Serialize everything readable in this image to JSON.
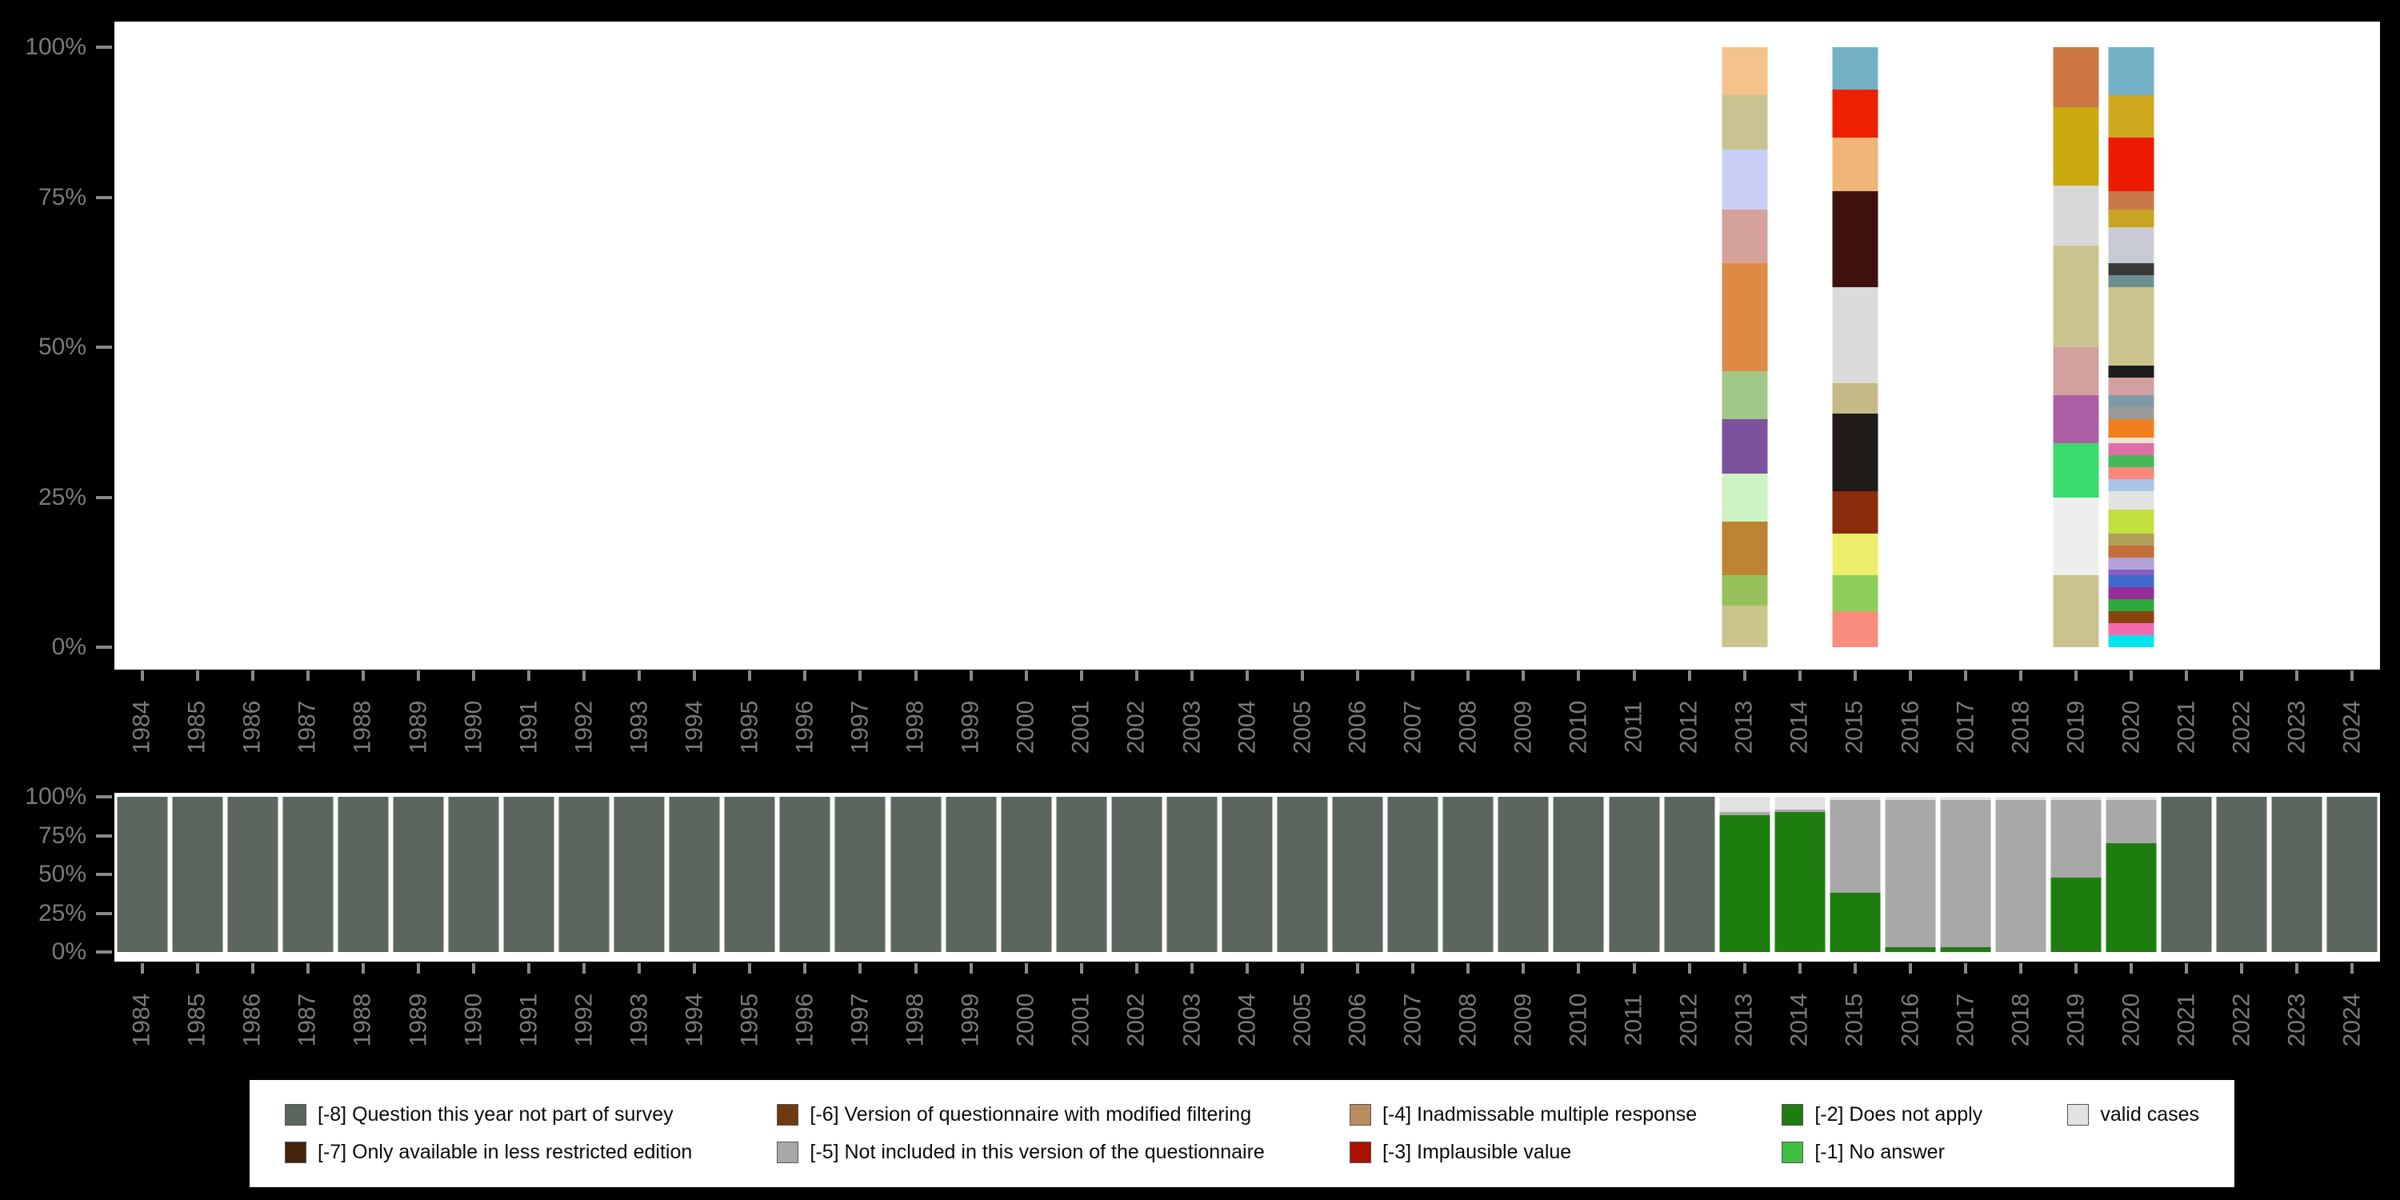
{
  "colors": {
    "background": "#000000",
    "panel": "#ffffff",
    "axis_text": "#7b7b7b",
    "tick": "#8a8a8a",
    "legend_text": "#0a0a0a"
  },
  "axes": {
    "y_ticks": [
      "100%",
      "75%",
      "50%",
      "25%",
      "0%"
    ],
    "years": [
      "1984",
      "1985",
      "1986",
      "1987",
      "1988",
      "1989",
      "1990",
      "1991",
      "1992",
      "1993",
      "1994",
      "1995",
      "1996",
      "1997",
      "1998",
      "1999",
      "2000",
      "2001",
      "2002",
      "2003",
      "2004",
      "2005",
      "2006",
      "2007",
      "2008",
      "2009",
      "2010",
      "2011",
      "2012",
      "2013",
      "2014",
      "2015",
      "2016",
      "2017",
      "2018",
      "2019",
      "2020",
      "2021",
      "2022",
      "2023",
      "2024"
    ]
  },
  "legend": {
    "items": [
      {
        "key": "m8",
        "label": "[-8] Question this year not part of survey",
        "color": "#5A665E"
      },
      {
        "key": "m7",
        "label": "[-7] Only available in less restricted edition",
        "color": "#45240B"
      },
      {
        "key": "m6",
        "label": "[-6] Version of questionnaire with modified filtering",
        "color": "#6E3B10"
      },
      {
        "key": "m5",
        "label": "[-5] Not included in this version of the questionnaire",
        "color": "#A8A8A8"
      },
      {
        "key": "m4",
        "label": "[-4] Inadmissable multiple response",
        "color": "#B98D60"
      },
      {
        "key": "m3",
        "label": "[-3] Implausible value",
        "color": "#A91101"
      },
      {
        "key": "m2",
        "label": "[-2] Does not apply",
        "color": "#1E7D0F"
      },
      {
        "key": "m1",
        "label": "[-1] No answer",
        "color": "#3FBE3F"
      },
      {
        "key": "valid",
        "label": "valid cases",
        "color": "#E2E2E2"
      }
    ]
  },
  "chart_data": [
    {
      "type": "bar",
      "stacking": "percent",
      "description": "Stacked distribution of answer categories (valid cases only); bars are present only for 2013, 2015, 2019 and 2020, all other years empty",
      "ylim": [
        0,
        100
      ],
      "ytick_labels": [
        "100%",
        "75%",
        "50%",
        "25%",
        "0%"
      ],
      "years_with_bars": [
        "2013",
        "2015",
        "2019",
        "2020"
      ],
      "bars": {
        "2013": [
          {
            "color": "#F4C28B",
            "pct": 8
          },
          {
            "color": "#C9C291",
            "pct": 9
          },
          {
            "color": "#C9CEF6",
            "pct": 10
          },
          {
            "color": "#D5A19B",
            "pct": 9
          },
          {
            "color": "#DD8B44",
            "pct": 18
          },
          {
            "color": "#A2C889",
            "pct": 8
          },
          {
            "color": "#7C519D",
            "pct": 9
          },
          {
            "color": "#CDF2C4",
            "pct": 8
          },
          {
            "color": "#BD8332",
            "pct": 9
          },
          {
            "color": "#97C25B",
            "pct": 5
          },
          {
            "color": "#CBC48D",
            "pct": 7
          }
        ],
        "2015": [
          {
            "color": "#73B1C7",
            "pct": 7
          },
          {
            "color": "#ED2100",
            "pct": 8
          },
          {
            "color": "#F1B577",
            "pct": 9
          },
          {
            "color": "#3F1210",
            "pct": 16
          },
          {
            "color": "#DBDBDB",
            "pct": 16
          },
          {
            "color": "#C5BA87",
            "pct": 5
          },
          {
            "color": "#201A19",
            "pct": 13
          },
          {
            "color": "#8B2C0B",
            "pct": 7
          },
          {
            "color": "#ECEF69",
            "pct": 7
          },
          {
            "color": "#8ECF59",
            "pct": 6
          },
          {
            "color": "#F88D7D",
            "pct": 6
          }
        ],
        "2019": [
          {
            "color": "#CB7643",
            "pct": 10
          },
          {
            "color": "#CBA910",
            "pct": 13
          },
          {
            "color": "#D8D8D8",
            "pct": 10
          },
          {
            "color": "#CBC38E",
            "pct": 17
          },
          {
            "color": "#D3A0A0",
            "pct": 8
          },
          {
            "color": "#AA5EA3",
            "pct": 8
          },
          {
            "color": "#39DC6D",
            "pct": 9
          },
          {
            "color": "#EEEEEE",
            "pct": 13
          },
          {
            "color": "#CBC38E",
            "pct": 12
          }
        ],
        "2020": [
          {
            "color": "#73B1C7",
            "pct": 8
          },
          {
            "color": "#CEA81F",
            "pct": 7
          },
          {
            "color": "#ED1900",
            "pct": 9
          },
          {
            "color": "#C87848",
            "pct": 3
          },
          {
            "color": "#C7A421",
            "pct": 3
          },
          {
            "color": "#C8CBD3",
            "pct": 6
          },
          {
            "color": "#393939",
            "pct": 2
          },
          {
            "color": "#6D8E8F",
            "pct": 2
          },
          {
            "color": "#CBC38E",
            "pct": 13
          },
          {
            "color": "#1D1D1D",
            "pct": 2
          },
          {
            "color": "#D3A0A0",
            "pct": 3
          },
          {
            "color": "#7C9AA5",
            "pct": 2
          },
          {
            "color": "#9A9A9A",
            "pct": 2
          },
          {
            "color": "#EF7F1F",
            "pct": 3
          },
          {
            "color": "#ECE2D7",
            "pct": 1
          },
          {
            "color": "#DF6EA7",
            "pct": 2
          },
          {
            "color": "#45B759",
            "pct": 2
          },
          {
            "color": "#F8887A",
            "pct": 2
          },
          {
            "color": "#A8C5E7",
            "pct": 2
          },
          {
            "color": "#E2E2E2",
            "pct": 3
          },
          {
            "color": "#C2E03E",
            "pct": 4
          },
          {
            "color": "#AE9F59",
            "pct": 2
          },
          {
            "color": "#C36F39",
            "pct": 2
          },
          {
            "color": "#B2A2D9",
            "pct": 2
          },
          {
            "color": "#895EBE",
            "pct": 1
          },
          {
            "color": "#4168CF",
            "pct": 2
          },
          {
            "color": "#982F98",
            "pct": 2
          },
          {
            "color": "#2EA73B",
            "pct": 2
          },
          {
            "color": "#894412",
            "pct": 2
          },
          {
            "color": "#F46AAF",
            "pct": 2
          },
          {
            "color": "#00E4ED",
            "pct": 2
          }
        ]
      }
    },
    {
      "type": "bar",
      "stacking": "percent",
      "description": "Share of missing-value codes vs valid cases per survey year 1984-2024",
      "ylim": [
        0,
        100
      ],
      "ytick_labels": [
        "100%",
        "75%",
        "50%",
        "25%",
        "0%"
      ],
      "stack_order_top_to_bottom": [
        "valid",
        "m5",
        "m2",
        "m8"
      ],
      "series": [
        {
          "key": "m8",
          "name": "[-8] Question this year not part of survey",
          "color": "#5A665E",
          "values": [
            100,
            100,
            100,
            100,
            100,
            100,
            100,
            100,
            100,
            100,
            100,
            100,
            100,
            100,
            100,
            100,
            100,
            100,
            100,
            100,
            100,
            100,
            100,
            100,
            100,
            100,
            100,
            100,
            100,
            0,
            0,
            0,
            0,
            0,
            0,
            0,
            0,
            100,
            100,
            100,
            100
          ]
        },
        {
          "key": "m5",
          "name": "[-5] Not included in this version of the questionnaire",
          "color": "#A8A8A8",
          "values": [
            0,
            0,
            0,
            0,
            0,
            0,
            0,
            0,
            0,
            0,
            0,
            0,
            0,
            0,
            0,
            0,
            0,
            0,
            0,
            0,
            0,
            0,
            0,
            0,
            0,
            0,
            0,
            0,
            0,
            2,
            2,
            60,
            95,
            95,
            98,
            50,
            28,
            0,
            0,
            0,
            0
          ]
        },
        {
          "key": "m2",
          "name": "[-2] Does not apply",
          "color": "#1E7D0F",
          "values": [
            0,
            0,
            0,
            0,
            0,
            0,
            0,
            0,
            0,
            0,
            0,
            0,
            0,
            0,
            0,
            0,
            0,
            0,
            0,
            0,
            0,
            0,
            0,
            0,
            0,
            0,
            0,
            0,
            0,
            88,
            90,
            38,
            3,
            3,
            0,
            48,
            70,
            0,
            0,
            0,
            0
          ]
        },
        {
          "key": "valid",
          "name": "valid cases",
          "color": "#E2E2E2",
          "values": [
            0,
            0,
            0,
            0,
            0,
            0,
            0,
            0,
            0,
            0,
            0,
            0,
            0,
            0,
            0,
            0,
            0,
            0,
            0,
            0,
            0,
            0,
            0,
            0,
            0,
            0,
            0,
            0,
            0,
            10,
            8,
            2,
            2,
            2,
            2,
            2,
            2,
            0,
            0,
            0,
            0
          ]
        }
      ]
    }
  ]
}
